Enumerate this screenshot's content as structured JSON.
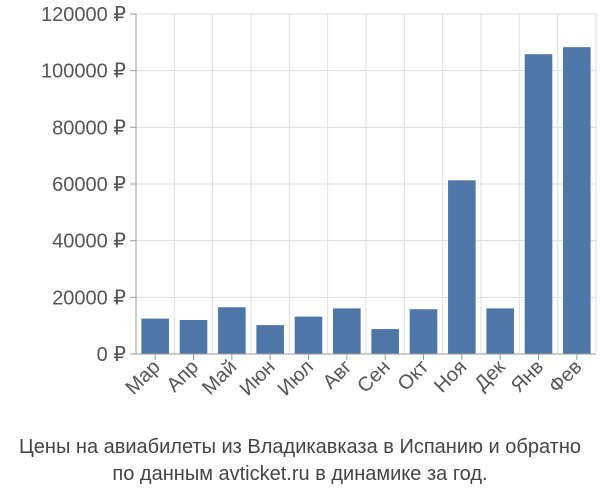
{
  "chart_data": {
    "type": "bar",
    "categories": [
      "Мар",
      "Апр",
      "Май",
      "Июн",
      "Июл",
      "Авг",
      "Сен",
      "Окт",
      "Ноя",
      "Дек",
      "Янв",
      "Фев"
    ],
    "values": [
      12500,
      12000,
      16500,
      10200,
      13200,
      16100,
      8800,
      15800,
      61300,
      16100,
      105800,
      108300
    ],
    "ylim": [
      0,
      120000
    ],
    "yticks": [
      0,
      20000,
      40000,
      60000,
      80000,
      100000,
      120000
    ],
    "ytick_labels": [
      "0 ₽",
      "20000 ₽",
      "40000 ₽",
      "60000 ₽",
      "80000 ₽",
      "100000 ₽",
      "120000 ₽"
    ],
    "grid": true,
    "colors": {
      "bar": "#4e77a8",
      "grid": "#dddddd",
      "axis": "#999999",
      "text": "#555555"
    }
  },
  "caption": {
    "line1": "Цены на авиабилеты из Владикавказа в Испанию и обратно",
    "line2": "по данным avticket.ru в динамике за год."
  }
}
